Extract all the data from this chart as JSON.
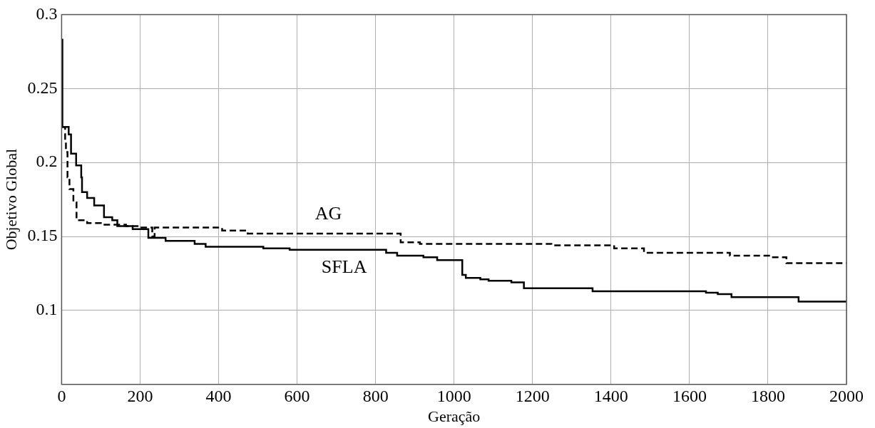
{
  "chart_data": {
    "type": "step",
    "xlabel": "Geração",
    "ylabel": "Objetivo Global",
    "xlim": [
      0,
      2000
    ],
    "xticks": [
      0,
      200,
      400,
      600,
      800,
      1000,
      1200,
      1400,
      1600,
      1800,
      2000
    ],
    "ylim": [
      0.05,
      0.3
    ],
    "yticks": [
      0.1,
      0.15,
      0.2,
      0.25,
      0.3
    ],
    "grid": true,
    "legend": false,
    "marker": "none",
    "series": [
      {
        "name": "AG",
        "color": "#000000",
        "line_style": "dashed",
        "x": [
          0,
          9,
          11,
          15,
          20,
          30,
          38,
          65,
          100,
          164,
          197,
          231,
          237,
          409,
          474,
          864,
          913,
          1248,
          1408,
          1484,
          1703,
          1810,
          1847,
          2000
        ],
        "values": [
          0.224,
          0.215,
          0.207,
          0.19,
          0.182,
          0.173,
          0.161,
          0.159,
          0.158,
          0.157,
          0.156,
          0.15,
          0.156,
          0.154,
          0.152,
          0.146,
          0.145,
          0.144,
          0.142,
          0.139,
          0.137,
          0.136,
          0.132,
          0.132
        ]
      },
      {
        "name": "SFLA",
        "color": "#000000",
        "line_style": "solid",
        "x": [
          0,
          2,
          18,
          24,
          37,
          50,
          52,
          65,
          83,
          108,
          129,
          142,
          181,
          221,
          265,
          339,
          367,
          514,
          581,
          827,
          855,
          922,
          957,
          1021,
          1030,
          1067,
          1088,
          1146,
          1178,
          1353,
          1642,
          1672,
          1707,
          1878,
          2000
        ],
        "values": [
          0.283,
          0.224,
          0.219,
          0.206,
          0.198,
          0.19,
          0.18,
          0.176,
          0.171,
          0.163,
          0.161,
          0.157,
          0.155,
          0.149,
          0.147,
          0.145,
          0.143,
          0.142,
          0.141,
          0.139,
          0.137,
          0.136,
          0.134,
          0.124,
          0.122,
          0.121,
          0.12,
          0.119,
          0.115,
          0.113,
          0.112,
          0.111,
          0.109,
          0.106,
          0.106
        ]
      }
    ]
  }
}
